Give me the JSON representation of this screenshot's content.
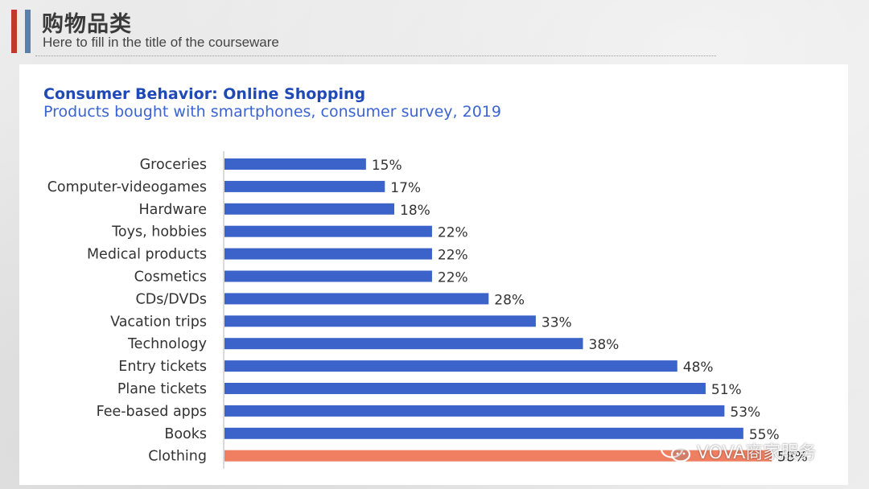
{
  "slide": {
    "title": "购物品类",
    "subtitle": "Here to fill in the title of the courseware",
    "accent_colors": [
      "#c0392b",
      "#5b7fa6"
    ]
  },
  "watermark": {
    "icon": "wechat-icon",
    "text": "VOVA商家服务"
  },
  "chart_data": {
    "type": "bar",
    "orientation": "horizontal",
    "title": "Consumer Behavior: Online Shopping",
    "subtitle": "Products bought with smartphones, consumer survey, 2019",
    "categories": [
      "Groceries",
      "Computer-videogames",
      "Hardware",
      "Toys, hobbies",
      "Medical products",
      "Cosmetics",
      "CDs/DVDs",
      "Vacation trips",
      "Technology",
      "Entry tickets",
      "Plane tickets",
      "Fee-based apps",
      "Books",
      "Clothing"
    ],
    "values": [
      15,
      17,
      18,
      22,
      22,
      22,
      28,
      33,
      38,
      48,
      51,
      53,
      55,
      58
    ],
    "labels": [
      "15%",
      "17%",
      "18%",
      "22%",
      "22%",
      "22%",
      "28%",
      "33%",
      "38%",
      "48%",
      "51%",
      "53%",
      "55%",
      "58%"
    ],
    "value_unit": "%",
    "xlim": [
      0,
      58
    ],
    "grid": false,
    "bar_color": "#3c63c9",
    "highlight_color": "#f07f62",
    "highlight_category": "Clothing"
  }
}
